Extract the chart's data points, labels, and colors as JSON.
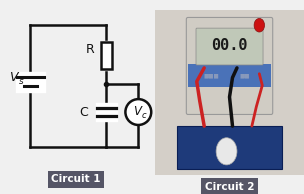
{
  "bg_color": "#f0f0f0",
  "circuit_bg": "#ffffff",
  "circuit_color": "#111111",
  "caption_bg": "#555566",
  "caption_text_color": "#ffffff",
  "caption1": "Circuit 1",
  "caption2": "Circuit 2",
  "vs_label": "V",
  "vs_sub": "s",
  "r_label": "R",
  "c_label": "C",
  "vc_label": "V",
  "vc_sub": "c",
  "fig_width": 3.04,
  "fig_height": 1.94,
  "dpi": 100,
  "photo_bg": "#c8c4bc",
  "meter_body": "#d8d2c8",
  "meter_blue": "#4a72b8",
  "meter_screen_bg": "#b8c8b0",
  "meter_digits": "#1a1a1a",
  "pcb_color": "#1e3a7a",
  "wire_red": "#cc2222",
  "wire_black": "#111111",
  "white_cap": "#e8e8e8",
  "red_btn": "#cc1111"
}
